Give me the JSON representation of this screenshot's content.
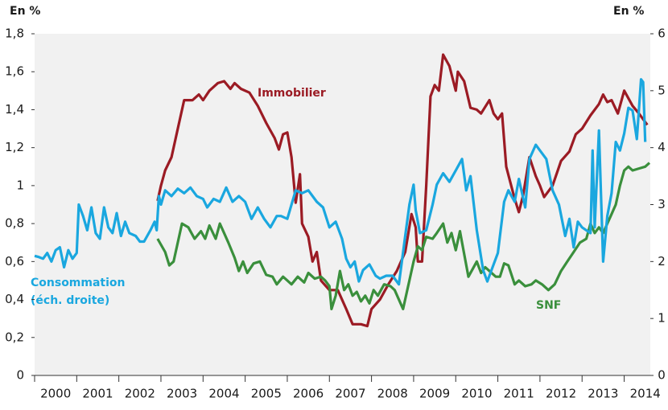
{
  "chart_data": {
    "type": "line",
    "y_label": "En %",
    "y2_label": "En %",
    "xlim": [
      2000,
      2014.62
    ],
    "xticks": [
      {
        "value": 2000,
        "label": "2000"
      },
      {
        "value": 2001,
        "label": "2001"
      },
      {
        "value": 2002,
        "label": "2002"
      },
      {
        "value": 2003,
        "label": "2003"
      },
      {
        "value": 2004,
        "label": "2004"
      },
      {
        "value": 2005,
        "label": "2005"
      },
      {
        "value": 2006,
        "label": "2006"
      },
      {
        "value": 2007,
        "label": "2007"
      },
      {
        "value": 2008,
        "label": "2008"
      },
      {
        "value": 2009,
        "label": "2009"
      },
      {
        "value": 2010,
        "label": "2010"
      },
      {
        "value": 2011,
        "label": "2011"
      },
      {
        "value": 2012,
        "label": "2012"
      },
      {
        "value": 2013,
        "label": "2013"
      },
      {
        "value": 2014,
        "label": "2014"
      }
    ],
    "ylim": [
      0,
      1.8
    ],
    "yticks": [
      0,
      {
        "value": 0.2,
        "label": "0,2"
      },
      {
        "value": 0.4,
        "label": "0,4"
      },
      {
        "value": 0.6,
        "label": "0,6"
      },
      {
        "value": 0.8,
        "label": "0,8"
      },
      1,
      {
        "value": 1.2,
        "label": "1,2"
      },
      {
        "value": 1.4,
        "label": "1,4"
      },
      {
        "value": 1.6,
        "label": "1,6"
      },
      {
        "value": 1.8,
        "label": "1,8"
      }
    ],
    "y2lim": [
      0,
      6
    ],
    "y2ticks": [
      0,
      1,
      2,
      3,
      4,
      5,
      6
    ],
    "grid": false,
    "series": [
      {
        "name": "Immobilier",
        "color": "#9b1b24",
        "axis": "y",
        "x": [
          2002.92,
          2003.0,
          2003.1,
          2003.25,
          2003.4,
          2003.55,
          2003.75,
          2003.9,
          2004.0,
          2004.15,
          2004.35,
          2004.5,
          2004.65,
          2004.75,
          2004.9,
          2005.1,
          2005.3,
          2005.5,
          2005.7,
          2005.8,
          2005.9,
          2006.0,
          2006.1,
          2006.2,
          2006.3,
          2006.35,
          2006.5,
          2006.6,
          2006.7,
          2006.8,
          2007.0,
          2007.2,
          2007.4,
          2007.55,
          2007.75,
          2007.9,
          2008.0,
          2008.2,
          2008.4,
          2008.6,
          2008.8,
          2008.95,
          2009.05,
          2009.1,
          2009.2,
          2009.3,
          2009.4,
          2009.5,
          2009.6,
          2009.7,
          2009.85,
          2010.0,
          2010.05,
          2010.2,
          2010.35,
          2010.5,
          2010.6,
          2010.8,
          2010.9,
          2011.0,
          2011.1,
          2011.2,
          2011.4,
          2011.5,
          2011.6,
          2011.75,
          2011.9,
          2012.0,
          2012.1,
          2012.3,
          2012.5,
          2012.7,
          2012.85,
          2013.0,
          2013.2,
          2013.4,
          2013.5,
          2013.6,
          2013.7,
          2013.85,
          2014.0,
          2014.2,
          2014.35,
          2014.45,
          2014.55
        ],
        "values": [
          0.92,
          1.0,
          1.08,
          1.15,
          1.3,
          1.45,
          1.45,
          1.48,
          1.45,
          1.5,
          1.54,
          1.55,
          1.51,
          1.54,
          1.51,
          1.49,
          1.42,
          1.33,
          1.25,
          1.19,
          1.27,
          1.28,
          1.15,
          0.91,
          1.06,
          0.8,
          0.73,
          0.6,
          0.65,
          0.5,
          0.45,
          0.45,
          0.35,
          0.27,
          0.27,
          0.26,
          0.35,
          0.4,
          0.48,
          0.55,
          0.65,
          0.85,
          0.78,
          0.6,
          0.6,
          1.0,
          1.47,
          1.53,
          1.5,
          1.69,
          1.63,
          1.5,
          1.6,
          1.55,
          1.41,
          1.4,
          1.38,
          1.45,
          1.38,
          1.35,
          1.38,
          1.1,
          0.93,
          0.86,
          0.95,
          1.15,
          1.05,
          1.0,
          0.94,
          1.0,
          1.13,
          1.18,
          1.27,
          1.3,
          1.37,
          1.43,
          1.48,
          1.44,
          1.45,
          1.38,
          1.5,
          1.42,
          1.38,
          1.35,
          1.32
        ]
      },
      {
        "name": "SNF",
        "color": "#3a8f3c",
        "axis": "y",
        "x": [
          2002.92,
          2003.1,
          2003.2,
          2003.3,
          2003.5,
          2003.65,
          2003.8,
          2003.95,
          2004.05,
          2004.15,
          2004.3,
          2004.4,
          2004.6,
          2004.75,
          2004.85,
          2004.95,
          2005.05,
          2005.2,
          2005.35,
          2005.5,
          2005.65,
          2005.75,
          2005.9,
          2006.0,
          2006.1,
          2006.25,
          2006.4,
          2006.5,
          2006.65,
          2006.8,
          2006.9,
          2007.0,
          2007.05,
          2007.15,
          2007.25,
          2007.35,
          2007.45,
          2007.55,
          2007.65,
          2007.75,
          2007.85,
          2007.95,
          2008.05,
          2008.15,
          2008.3,
          2008.45,
          2008.55,
          2008.75,
          2008.9,
          2009.0,
          2009.1,
          2009.2,
          2009.3,
          2009.45,
          2009.55,
          2009.7,
          2009.8,
          2009.9,
          2010.0,
          2010.1,
          2010.15,
          2010.3,
          2010.4,
          2010.5,
          2010.6,
          2010.7,
          2010.8,
          2010.95,
          2011.05,
          2011.15,
          2011.25,
          2011.4,
          2011.5,
          2011.65,
          2011.8,
          2011.9,
          2012.05,
          2012.2,
          2012.35,
          2012.5,
          2012.65,
          2012.8,
          2012.95,
          2013.1,
          2013.2,
          2013.3,
          2013.4,
          2013.5,
          2013.6,
          2013.7,
          2013.8,
          2013.9,
          2014.0,
          2014.1,
          2014.2,
          2014.35,
          2014.5,
          2014.6
        ],
        "values": [
          0.72,
          0.65,
          0.58,
          0.6,
          0.8,
          0.78,
          0.72,
          0.76,
          0.72,
          0.79,
          0.72,
          0.8,
          0.7,
          0.62,
          0.55,
          0.6,
          0.54,
          0.59,
          0.6,
          0.53,
          0.52,
          0.48,
          0.52,
          0.5,
          0.48,
          0.52,
          0.49,
          0.54,
          0.51,
          0.52,
          0.5,
          0.47,
          0.35,
          0.42,
          0.55,
          0.45,
          0.48,
          0.42,
          0.44,
          0.39,
          0.42,
          0.38,
          0.45,
          0.42,
          0.48,
          0.47,
          0.45,
          0.35,
          0.5,
          0.6,
          0.68,
          0.66,
          0.73,
          0.72,
          0.75,
          0.8,
          0.7,
          0.75,
          0.66,
          0.76,
          0.7,
          0.52,
          0.56,
          0.6,
          0.54,
          0.57,
          0.55,
          0.52,
          0.52,
          0.59,
          0.58,
          0.48,
          0.5,
          0.47,
          0.48,
          0.5,
          0.48,
          0.45,
          0.48,
          0.55,
          0.6,
          0.65,
          0.7,
          0.72,
          0.8,
          0.75,
          0.78,
          0.75,
          0.8,
          0.85,
          0.9,
          1.0,
          1.08,
          1.1,
          1.08,
          1.09,
          1.1,
          1.12
        ]
      },
      {
        "name": "Consommation",
        "color": "#1aa7df",
        "axis": "y2",
        "x": [
          2000.0,
          2000.1,
          2000.2,
          2000.3,
          2000.4,
          2000.5,
          2000.6,
          2000.7,
          2000.8,
          2000.9,
          2001.0,
          2001.05,
          2001.15,
          2001.25,
          2001.35,
          2001.45,
          2001.55,
          2001.65,
          2001.75,
          2001.85,
          2001.95,
          2002.05,
          2002.15,
          2002.25,
          2002.4,
          2002.5,
          2002.6,
          2002.75,
          2002.85,
          2002.9,
          2002.95,
          2003.0,
          2003.1,
          2003.25,
          2003.4,
          2003.55,
          2003.7,
          2003.85,
          2004.0,
          2004.1,
          2004.25,
          2004.4,
          2004.55,
          2004.7,
          2004.85,
          2005.0,
          2005.15,
          2005.3,
          2005.45,
          2005.6,
          2005.75,
          2005.85,
          2006.0,
          2006.1,
          2006.2,
          2006.35,
          2006.5,
          2006.7,
          2006.85,
          2007.0,
          2007.15,
          2007.3,
          2007.4,
          2007.5,
          2007.6,
          2007.7,
          2007.8,
          2007.95,
          2008.1,
          2008.2,
          2008.35,
          2008.5,
          2008.65,
          2008.8,
          2008.9,
          2009.0,
          2009.05,
          2009.15,
          2009.3,
          2009.45,
          2009.55,
          2009.7,
          2009.85,
          2010.0,
          2010.15,
          2010.25,
          2010.35,
          2010.5,
          2010.65,
          2010.75,
          2010.85,
          2011.0,
          2011.15,
          2011.25,
          2011.4,
          2011.5,
          2011.65,
          2011.75,
          2011.9,
          2012.0,
          2012.15,
          2012.3,
          2012.45,
          2012.6,
          2012.7,
          2012.8,
          2012.9,
          2013.0,
          2013.1,
          2013.2,
          2013.25,
          2013.3,
          2013.4,
          2013.5,
          2013.6,
          2013.7,
          2013.8,
          2013.9,
          2014.0,
          2014.1,
          2014.2,
          2014.3,
          2014.4,
          2014.45,
          2014.5
        ],
        "values": [
          2.1,
          2.08,
          2.05,
          2.15,
          2.0,
          2.2,
          2.25,
          1.9,
          2.2,
          2.05,
          2.15,
          3.0,
          2.8,
          2.55,
          2.95,
          2.5,
          2.4,
          2.95,
          2.6,
          2.5,
          2.85,
          2.45,
          2.7,
          2.5,
          2.45,
          2.35,
          2.35,
          2.55,
          2.7,
          2.55,
          3.15,
          3.0,
          3.25,
          3.15,
          3.28,
          3.2,
          3.3,
          3.15,
          3.1,
          2.95,
          3.1,
          3.05,
          3.3,
          3.05,
          3.15,
          3.05,
          2.75,
          2.95,
          2.75,
          2.6,
          2.8,
          2.8,
          2.75,
          3.0,
          3.25,
          3.2,
          3.25,
          3.05,
          2.95,
          2.6,
          2.7,
          2.4,
          2.05,
          1.9,
          2.0,
          1.65,
          1.85,
          1.95,
          1.75,
          1.7,
          1.75,
          1.75,
          1.6,
          2.45,
          3.0,
          3.35,
          2.9,
          2.5,
          2.55,
          3.0,
          3.35,
          3.55,
          3.4,
          3.6,
          3.8,
          3.25,
          3.5,
          2.55,
          1.85,
          1.65,
          1.85,
          2.15,
          3.05,
          3.25,
          3.05,
          3.45,
          2.95,
          3.8,
          4.05,
          3.95,
          3.8,
          3.25,
          3.0,
          2.45,
          2.75,
          2.25,
          2.7,
          2.6,
          2.55,
          2.5,
          3.95,
          2.6,
          4.3,
          2.0,
          2.8,
          3.2,
          4.1,
          3.95,
          4.25,
          4.7,
          4.65,
          4.15,
          5.2,
          5.15,
          4.1
        ]
      }
    ],
    "annotations": [
      {
        "text": "(éch. droite)"
      }
    ]
  }
}
